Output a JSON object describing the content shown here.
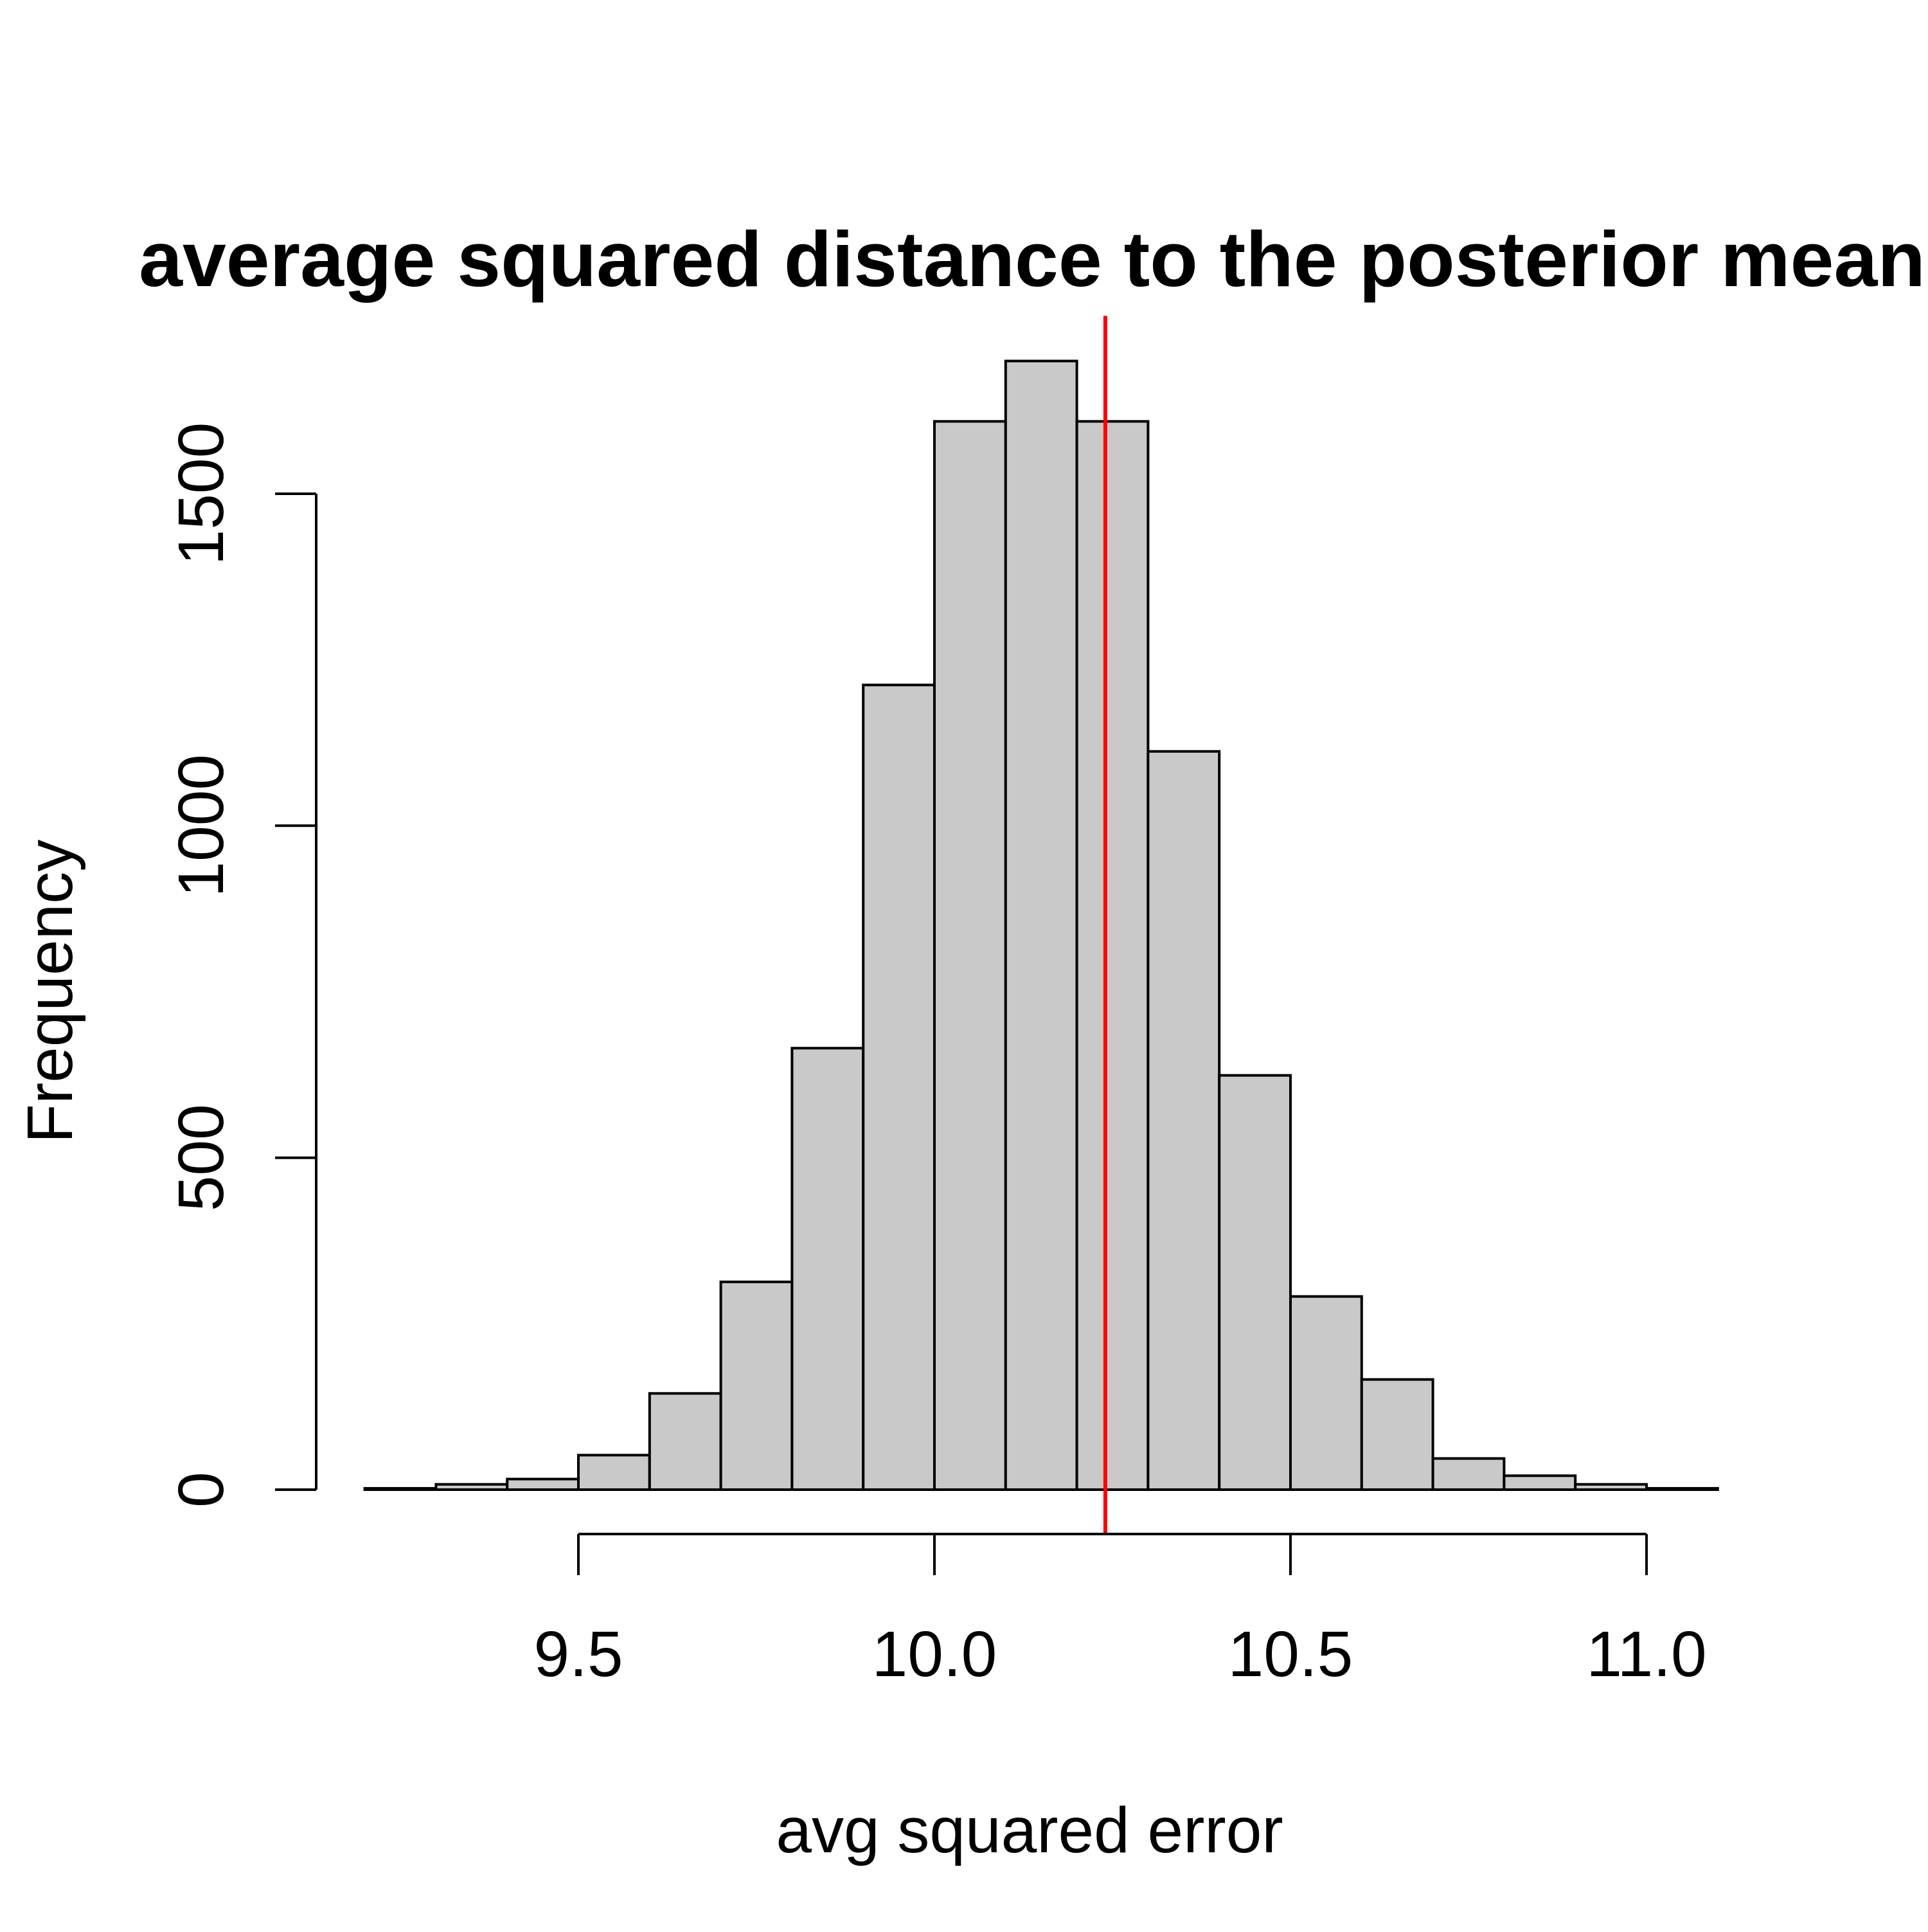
{
  "figure": {
    "title": "average squared distance to the posterior mean",
    "xlabel": "avg squared error",
    "ylabel": "Frequency"
  },
  "colors": {
    "background": "#FFFFFF",
    "bar_fill": "#C9C9C9",
    "bar_border": "#000000",
    "axis": "#000000",
    "text": "#000000",
    "vline": "#FF0000"
  },
  "chart_data": {
    "type": "bar",
    "chart_kind": "histogram",
    "title": "average squared distance to the posterior mean",
    "xlabel": "avg squared error",
    "ylabel": "Frequency",
    "bin_edges": [
      9.2,
      9.3,
      9.4,
      9.5,
      9.6,
      9.7,
      9.8,
      9.9,
      10.0,
      10.1,
      10.2,
      10.3,
      10.4,
      10.5,
      10.6,
      10.7,
      10.8,
      10.9,
      11.0,
      11.1
    ],
    "counts": [
      2,
      8,
      16,
      52,
      145,
      313,
      665,
      1212,
      1609,
      1700,
      1609,
      1112,
      624,
      291,
      166,
      47,
      21,
      8,
      2
    ],
    "x_ticks": [
      9.5,
      10.0,
      10.5,
      11.0
    ],
    "x_tick_labels": [
      "9.5",
      "10.0",
      "10.5",
      "11.0"
    ],
    "y_ticks": [
      0,
      500,
      1000,
      1500
    ],
    "y_tick_labels": [
      "0",
      "500",
      "1000",
      "1500"
    ],
    "xlim": [
      9.2,
      11.1
    ],
    "ylim": [
      0,
      1700
    ],
    "vline_x": 10.24,
    "grid": false,
    "legend": "none"
  }
}
